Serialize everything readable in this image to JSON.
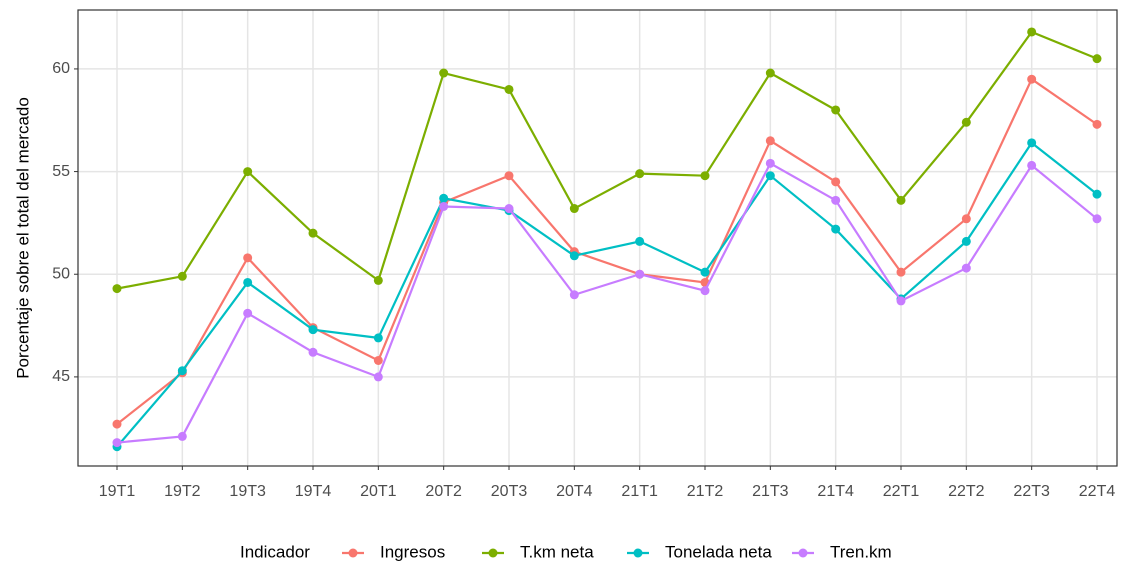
{
  "chart_data": {
    "type": "line",
    "y_label": "Porcentaje sobre el total del mercado",
    "legend_title": "Indicador",
    "legend_position": "bottom",
    "grid": true,
    "categories": [
      "19T1",
      "19T2",
      "19T3",
      "19T4",
      "20T1",
      "20T2",
      "20T3",
      "20T4",
      "21T1",
      "21T2",
      "21T3",
      "21T4",
      "22T1",
      "22T2",
      "22T3",
      "22T4"
    ],
    "ylim": [
      40.66,
      62.87
    ],
    "yticks": [
      45,
      50,
      55,
      60
    ],
    "series": [
      {
        "name": "Ingresos",
        "color": "#F8766D",
        "values": [
          42.7,
          45.2,
          50.8,
          47.4,
          45.8,
          53.5,
          54.8,
          51.1,
          50.0,
          49.6,
          56.5,
          54.5,
          50.1,
          52.7,
          59.5,
          57.3
        ]
      },
      {
        "name": "T.km neta",
        "color": "#7CAE00",
        "values": [
          49.3,
          49.9,
          55.0,
          52.0,
          49.7,
          59.8,
          59.0,
          53.2,
          54.9,
          54.8,
          59.8,
          58.0,
          53.6,
          57.4,
          61.8,
          60.5
        ]
      },
      {
        "name": "Tonelada neta",
        "color": "#00BFC4",
        "values": [
          41.6,
          45.3,
          49.6,
          47.3,
          46.9,
          53.7,
          53.1,
          50.9,
          51.6,
          50.1,
          54.8,
          52.2,
          48.8,
          51.6,
          56.4,
          53.9
        ]
      },
      {
        "name": "Tren.km",
        "color": "#C77CFF",
        "values": [
          41.8,
          42.1,
          48.1,
          46.2,
          45.0,
          53.3,
          53.2,
          49.0,
          50.0,
          49.2,
          55.4,
          53.6,
          48.7,
          50.3,
          55.3,
          52.7
        ]
      }
    ]
  }
}
